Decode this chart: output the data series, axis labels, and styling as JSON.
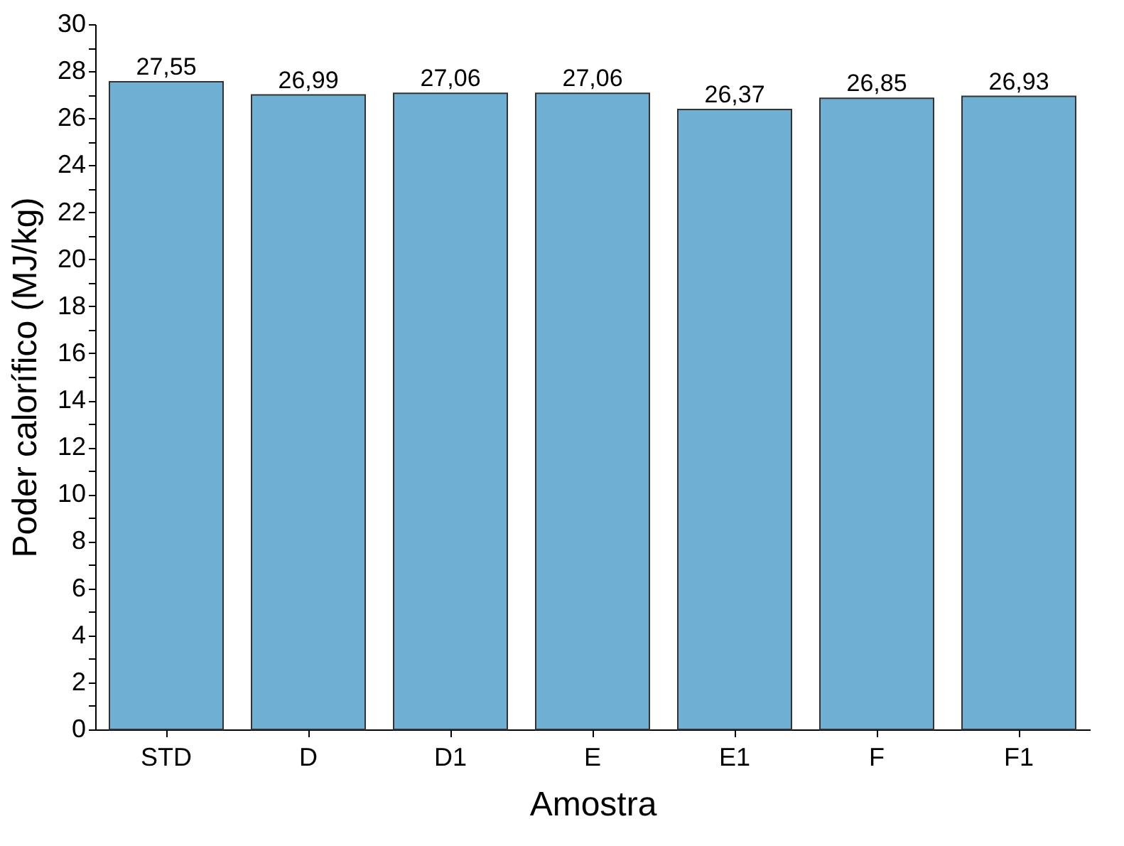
{
  "chart_data": {
    "type": "bar",
    "xlabel": "Amostra",
    "ylabel": "Poder calorífico (MJ/kg)",
    "categories": [
      "STD",
      "D",
      "D1",
      "E",
      "E1",
      "F",
      "F1"
    ],
    "values": [
      27.55,
      26.99,
      27.06,
      27.06,
      26.37,
      26.85,
      26.93
    ],
    "value_labels": [
      "27,55",
      "26,99",
      "27,06",
      "27,06",
      "26,37",
      "26,85",
      "26,93"
    ],
    "color": "#6fafd4",
    "ylim": [
      0,
      30
    ],
    "yticks": [
      0,
      {
        "value": 1,
        "label": null
      },
      2,
      {
        "value": 3,
        "label": null
      },
      4,
      {
        "value": 5,
        "label": null
      },
      6,
      {
        "value": 7,
        "label": null
      },
      8,
      {
        "value": 9,
        "label": null
      },
      10,
      {
        "value": 11,
        "label": null
      },
      12,
      {
        "value": 13,
        "label": null
      },
      14,
      {
        "value": 15,
        "label": null
      },
      16,
      {
        "value": 17,
        "label": null
      },
      18,
      {
        "value": 19,
        "label": null
      },
      20,
      {
        "value": 21,
        "label": null
      },
      22,
      {
        "value": 23,
        "label": null
      },
      24,
      {
        "value": 25,
        "label": null
      },
      26,
      {
        "value": 27,
        "label": null
      },
      28,
      {
        "value": 29,
        "label": null
      },
      30
    ],
    "grid": false,
    "legend": false
  }
}
